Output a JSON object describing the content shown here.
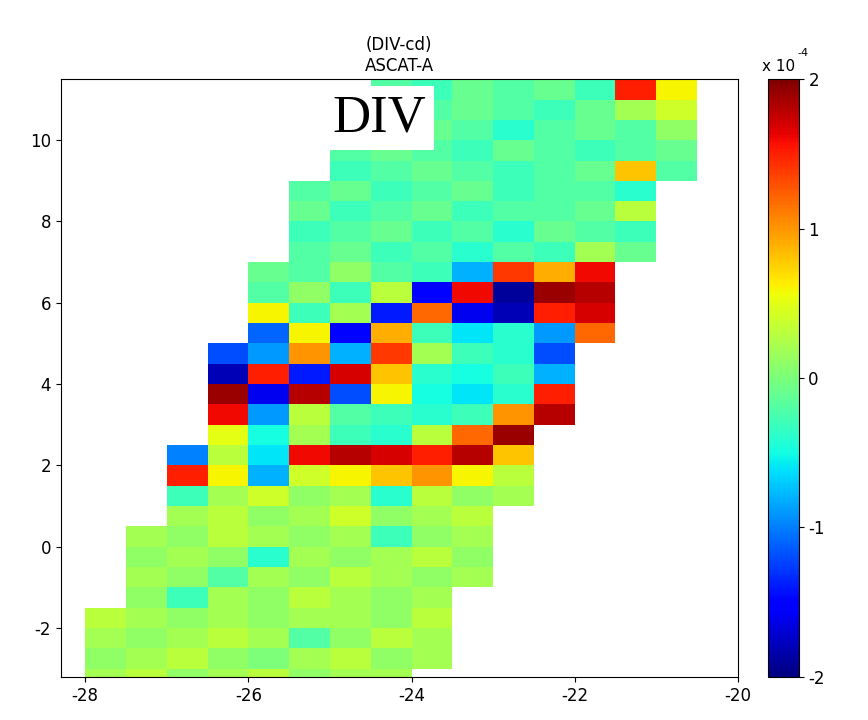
{
  "chart_data": {
    "type": "heatmap",
    "title": "(DIV-cd)",
    "subtitle": "ASCAT-A",
    "annotations": [
      "DIV"
    ],
    "color": "jet",
    "x": [
      -28.25,
      -27.75,
      -27.25,
      -26.75,
      -26.25,
      -25.75,
      -25.25,
      -24.75,
      -24.25,
      -23.75,
      -23.25,
      -22.75,
      -22.25,
      -21.75,
      -21.25,
      -20.75
    ],
    "y": [
      -3.25,
      -2.75,
      -2.25,
      -1.75,
      -1.25,
      -0.75,
      -0.25,
      0.25,
      0.75,
      1.25,
      1.75,
      2.25,
      2.75,
      3.25,
      3.75,
      4.25,
      4.75,
      5.25,
      5.75,
      6.25,
      6.75,
      7.25,
      7.75,
      8.25,
      8.75,
      9.25,
      9.75,
      10.25,
      10.75,
      11.25
    ],
    "cells": [
      [
        null,
        0.2,
        0.3,
        0.1,
        0.2,
        0.3,
        0.1,
        0.2,
        0.2,
        null,
        null,
        null,
        null,
        null,
        null,
        null
      ],
      [
        null,
        0.1,
        0.2,
        0.3,
        0.1,
        0.0,
        0.2,
        0.3,
        0.1,
        0.2,
        null,
        null,
        null,
        null,
        null,
        null
      ],
      [
        null,
        0.2,
        0.1,
        0.2,
        0.3,
        0.2,
        -0.2,
        0.1,
        0.3,
        0.2,
        null,
        null,
        null,
        null,
        null,
        null
      ],
      [
        null,
        0.3,
        0.2,
        0.1,
        0.2,
        0.1,
        0.2,
        0.2,
        0.1,
        0.3,
        null,
        null,
        null,
        null,
        null,
        null
      ],
      [
        null,
        null,
        0.1,
        -0.3,
        0.2,
        0.1,
        0.3,
        0.2,
        0.1,
        0.2,
        null,
        null,
        null,
        null,
        null,
        null
      ],
      [
        null,
        null,
        0.2,
        0.1,
        -0.2,
        0.2,
        0.1,
        0.3,
        0.2,
        0.1,
        0.2,
        null,
        null,
        null,
        null,
        null
      ],
      [
        null,
        null,
        0.1,
        0.2,
        0.1,
        -0.4,
        0.2,
        0.1,
        0.2,
        0.3,
        0.1,
        null,
        null,
        null,
        null,
        null
      ],
      [
        null,
        null,
        0.2,
        0.1,
        0.3,
        0.2,
        0.1,
        0.2,
        -0.3,
        0.1,
        0.2,
        null,
        null,
        null,
        null,
        null
      ],
      [
        null,
        null,
        null,
        0.2,
        0.3,
        0.1,
        0.2,
        0.4,
        0.1,
        0.2,
        0.3,
        null,
        null,
        null,
        null,
        null
      ],
      [
        null,
        null,
        null,
        -0.3,
        0.2,
        0.4,
        0.1,
        0.2,
        -0.4,
        0.3,
        0.1,
        0.2,
        null,
        null,
        null,
        null
      ],
      [
        null,
        null,
        null,
        1.5,
        0.6,
        -0.8,
        0.4,
        0.6,
        0.8,
        1.0,
        0.6,
        0.3,
        null,
        null,
        null,
        null
      ],
      [
        null,
        null,
        null,
        -1.0,
        0.3,
        -0.6,
        1.6,
        1.8,
        1.7,
        1.5,
        1.8,
        0.8,
        null,
        null,
        null,
        null
      ],
      [
        null,
        null,
        null,
        null,
        0.5,
        -0.5,
        0.2,
        -0.3,
        -0.4,
        0.3,
        1.2,
        1.9,
        null,
        null,
        null,
        null
      ],
      [
        null,
        null,
        null,
        null,
        1.6,
        -0.9,
        0.3,
        -0.2,
        -0.3,
        -0.4,
        -0.3,
        1.0,
        1.8,
        null,
        null,
        null
      ],
      [
        null,
        null,
        null,
        null,
        1.9,
        -1.6,
        1.8,
        -1.2,
        0.6,
        -0.5,
        -0.6,
        -0.4,
        1.5,
        null,
        null,
        null
      ],
      [
        null,
        null,
        null,
        null,
        -1.8,
        1.5,
        -1.4,
        1.7,
        0.8,
        -0.4,
        -0.5,
        -0.3,
        -0.8,
        null,
        null,
        null
      ],
      [
        null,
        null,
        null,
        null,
        -1.2,
        -0.9,
        1.0,
        -0.8,
        1.4,
        0.2,
        -0.3,
        -0.4,
        -1.2,
        null,
        null,
        null
      ],
      [
        null,
        null,
        null,
        null,
        null,
        -1.1,
        0.6,
        -1.5,
        0.9,
        -0.3,
        -0.6,
        -0.4,
        -0.9,
        1.2,
        null,
        null
      ],
      [
        null,
        null,
        null,
        null,
        null,
        0.6,
        -0.3,
        0.2,
        -1.4,
        1.2,
        -1.6,
        -1.8,
        1.5,
        1.7,
        null,
        null
      ],
      [
        null,
        null,
        null,
        null,
        null,
        -0.2,
        0.1,
        -0.3,
        0.3,
        -1.5,
        1.6,
        -1.9,
        1.9,
        1.8,
        null,
        null
      ],
      [
        null,
        null,
        null,
        null,
        null,
        -0.1,
        -0.2,
        0.1,
        -0.2,
        -0.3,
        -0.8,
        1.4,
        0.9,
        1.6,
        null,
        null
      ],
      [
        null,
        null,
        null,
        null,
        null,
        null,
        -0.2,
        -0.1,
        -0.3,
        -0.2,
        -0.4,
        -0.2,
        -0.3,
        0.2,
        -0.1,
        null
      ],
      [
        null,
        null,
        null,
        null,
        null,
        null,
        -0.3,
        -0.2,
        -0.1,
        -0.3,
        -0.2,
        -0.4,
        -0.1,
        -0.2,
        -0.3,
        null
      ],
      [
        null,
        null,
        null,
        null,
        null,
        null,
        -0.1,
        -0.3,
        -0.2,
        -0.1,
        -0.3,
        -0.2,
        -0.2,
        -0.1,
        0.3,
        null
      ],
      [
        null,
        null,
        null,
        null,
        null,
        null,
        -0.2,
        -0.1,
        -0.3,
        -0.2,
        -0.1,
        -0.3,
        -0.2,
        -0.2,
        -0.4,
        null
      ],
      [
        null,
        null,
        null,
        null,
        null,
        null,
        null,
        -0.3,
        -0.2,
        -0.1,
        -0.2,
        -0.3,
        -0.2,
        -0.1,
        0.8,
        -0.2
      ],
      [
        null,
        null,
        null,
        null,
        null,
        null,
        null,
        -0.2,
        -0.1,
        -0.2,
        -0.3,
        -0.1,
        -0.2,
        -0.3,
        -0.2,
        -0.1
      ],
      [
        null,
        null,
        null,
        null,
        null,
        null,
        null,
        -0.3,
        -0.2,
        -0.1,
        -0.2,
        -0.4,
        -0.2,
        -0.1,
        -0.2,
        0.1
      ],
      [
        null,
        null,
        null,
        null,
        null,
        null,
        null,
        -0.4,
        -0.3,
        -0.2,
        -0.1,
        -0.2,
        -0.3,
        -0.1,
        0.2,
        0.4
      ],
      [
        null,
        null,
        null,
        null,
        null,
        null,
        null,
        null,
        -0.2,
        -0.3,
        -0.1,
        -0.2,
        -0.1,
        -0.3,
        1.5,
        0.6
      ]
    ],
    "xlim": [
      -28.3,
      -20
    ],
    "ylim": [
      -3.2,
      11.5
    ],
    "xticks": [
      -28,
      -26,
      -24,
      -22,
      -20
    ],
    "yticks": [
      -2,
      0,
      2,
      4,
      6,
      8,
      10
    ],
    "colorbar": {
      "range": [
        -2,
        2
      ],
      "ticks": [
        -2,
        -1,
        0,
        1,
        2
      ],
      "multiplier": "x 10",
      "exponent": "-4"
    }
  }
}
